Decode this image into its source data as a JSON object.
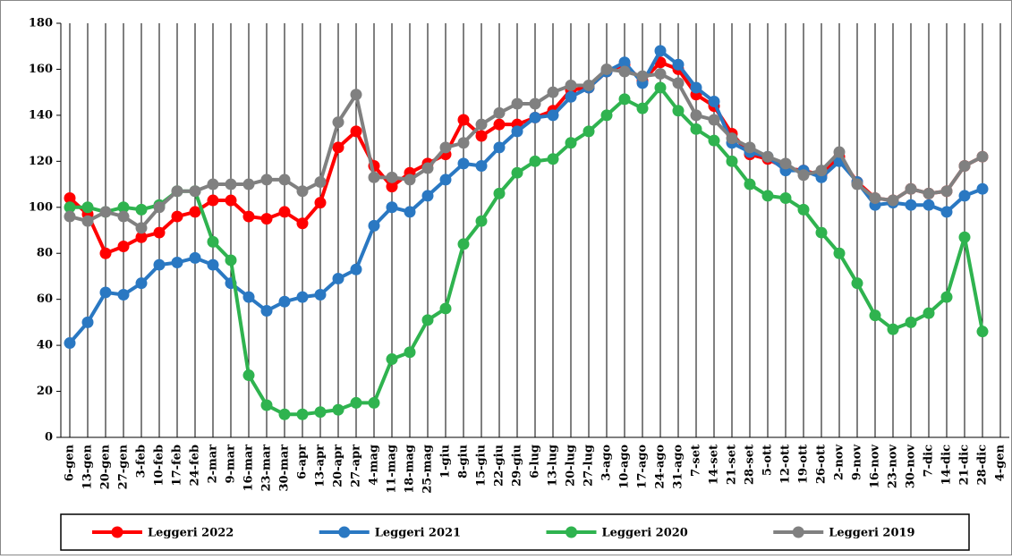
{
  "chart_data": {
    "type": "line",
    "categories": [
      "6-gen",
      "13-gen",
      "20-gen",
      "27-gen",
      "3-feb",
      "10-feb",
      "17-feb",
      "24-feb",
      "2-mar",
      "9-mar",
      "16-mar",
      "23-mar",
      "30-mar",
      "6-apr",
      "13-apr",
      "20-apr",
      "27-apr",
      "4-mag",
      "11-mag",
      "18-mag",
      "25-mag",
      "1-giu",
      "8-giu",
      "15-giu",
      "22-giu",
      "29-giu",
      "6-lug",
      "13-lug",
      "20-lug",
      "27-lug",
      "3-ago",
      "10-ago",
      "17-ago",
      "24-ago",
      "31-ago",
      "7-set",
      "14-set",
      "21-set",
      "28-set",
      "5-ott",
      "12-ott",
      "19-ott",
      "26-ott",
      "2-nov",
      "9-nov",
      "16-nov",
      "23-nov",
      "30-nov",
      "7-dic",
      "14-dic",
      "21-dic",
      "28-dic",
      "4-gen"
    ],
    "series": [
      {
        "name": "Leggeri 2022",
        "color": "#ff0000",
        "values": [
          104,
          97,
          80,
          83,
          87,
          89,
          96,
          98,
          103,
          103,
          96,
          95,
          98,
          93,
          102,
          126,
          133,
          118,
          109,
          115,
          119,
          123,
          138,
          131,
          136,
          136,
          139,
          142,
          151,
          152,
          159,
          162,
          155,
          163,
          160,
          149,
          144,
          132,
          123,
          121,
          117,
          116,
          114,
          122,
          111,
          104,
          103,
          108,
          106,
          107,
          118,
          122,
          null
        ]
      },
      {
        "name": "Leggeri 2021",
        "color": "#2a78c2",
        "values": [
          41,
          50,
          63,
          62,
          67,
          75,
          76,
          78,
          75,
          67,
          61,
          55,
          59,
          61,
          62,
          69,
          73,
          92,
          100,
          98,
          105,
          112,
          119,
          118,
          126,
          133,
          139,
          140,
          148,
          152,
          159,
          163,
          154,
          168,
          162,
          152,
          146,
          128,
          124,
          122,
          116,
          116,
          113,
          120,
          111,
          101,
          102,
          101,
          101,
          98,
          105,
          108,
          null
        ]
      },
      {
        "name": "Leggeri 2020",
        "color": "#2fb34f",
        "values": [
          100,
          100,
          98,
          100,
          99,
          101,
          107,
          107,
          85,
          77,
          27,
          14,
          10,
          10,
          11,
          12,
          15,
          15,
          34,
          37,
          51,
          56,
          84,
          94,
          106,
          115,
          120,
          121,
          128,
          133,
          140,
          147,
          143,
          152,
          142,
          134,
          129,
          120,
          110,
          105,
          104,
          99,
          89,
          80,
          67,
          53,
          47,
          50,
          54,
          61,
          87,
          46,
          null
        ]
      },
      {
        "name": "Leggeri 2019",
        "color": "#808080",
        "values": [
          96,
          94,
          98,
          96,
          91,
          100,
          107,
          107,
          110,
          110,
          110,
          112,
          112,
          107,
          111,
          137,
          149,
          113,
          113,
          112,
          117,
          126,
          128,
          136,
          141,
          145,
          145,
          150,
          153,
          153,
          160,
          159,
          157,
          158,
          154,
          140,
          138,
          130,
          126,
          122,
          119,
          114,
          116,
          124,
          110,
          104,
          103,
          108,
          106,
          107,
          118,
          122,
          null
        ]
      }
    ],
    "ylim": [
      0,
      180
    ],
    "yticks": [
      0,
      20,
      40,
      60,
      80,
      100,
      120,
      140,
      160,
      180
    ],
    "grid": "x",
    "legend": "bottom"
  }
}
